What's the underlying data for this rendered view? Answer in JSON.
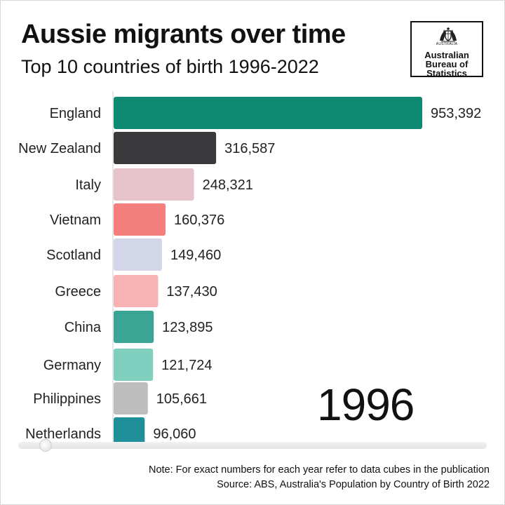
{
  "header": {
    "title": "Aussie migrants over time",
    "subtitle": "Top 10 countries of birth 1996-2022"
  },
  "logo": {
    "crest_label": "AUSTRALIA",
    "line1": "Australian",
    "line2": "Bureau of",
    "line3": "Statistics"
  },
  "year_label": "1996",
  "footer": {
    "note": "Note: For exact numbers for each year refer to data cubes in the publication",
    "source": "Source: ABS, Australia's Population by Country of Birth 2022"
  },
  "chart_data": {
    "type": "bar",
    "orientation": "horizontal",
    "title": "Aussie migrants over time",
    "subtitle": "Top 10 countries of birth 1996-2022",
    "categories": [
      "England",
      "New Zealand",
      "Italy",
      "Vietnam",
      "Scotland",
      "Greece",
      "China",
      "Germany",
      "Philippines",
      "Netherlands"
    ],
    "values": [
      953392,
      316587,
      248321,
      160376,
      149460,
      137430,
      123895,
      121724,
      105661,
      96060
    ],
    "value_labels": [
      "953,392",
      "316,587",
      "248,321",
      "160,376",
      "149,460",
      "137,430",
      "123,895",
      "121,724",
      "105,661",
      "96,060"
    ],
    "colors": [
      "#0f8a72",
      "#3a3a3c",
      "#e6c3ca",
      "#f47f7c",
      "#d2d6e8",
      "#f7b2b3",
      "#3aa595",
      "#7fcfbf",
      "#bdbdbd",
      "#1f8f9a"
    ],
    "xlim": [
      0,
      953392
    ],
    "grid": false,
    "legend": "none"
  }
}
